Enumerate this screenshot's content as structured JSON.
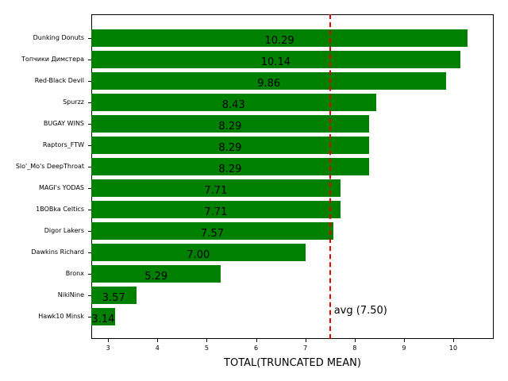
{
  "chart_data": {
    "type": "bar",
    "orientation": "horizontal",
    "title": "",
    "xlabel": "TOTAL(TRUNCATED MEAN)",
    "ylabel": "",
    "xlim": [
      2.66,
      10.82
    ],
    "xticks": [
      3,
      4,
      5,
      6,
      7,
      8,
      9,
      10
    ],
    "grid": false,
    "bar_color": "#008000",
    "categories": [
      "Dunking Donuts",
      "Топчики Димстера",
      "Red-Black Devil",
      "Spurzz",
      "BUGAY WINS",
      "Raptors_FTW",
      "Slo'_Mo's DeepThroat",
      "MAGI's YODAS",
      "1BOBka Celtics",
      "Digor Lakers",
      "Dawkins Richard",
      "Bronx",
      "NikiNine",
      "Hawk10 Minsk"
    ],
    "values": [
      10.29,
      10.14,
      9.86,
      8.43,
      8.29,
      8.29,
      8.29,
      7.71,
      7.71,
      7.57,
      7.0,
      5.29,
      3.57,
      3.14
    ],
    "value_labels": [
      "10.29",
      "10.14",
      "9.86",
      "8.43",
      "8.29",
      "8.29",
      "8.29",
      "7.71",
      "7.71",
      "7.57",
      "7.00",
      "5.29",
      "3.57",
      "3.14"
    ],
    "reference_line": {
      "value": 7.5,
      "label": "avg (7.50)",
      "color": "#e00000",
      "style": "dashed"
    }
  }
}
